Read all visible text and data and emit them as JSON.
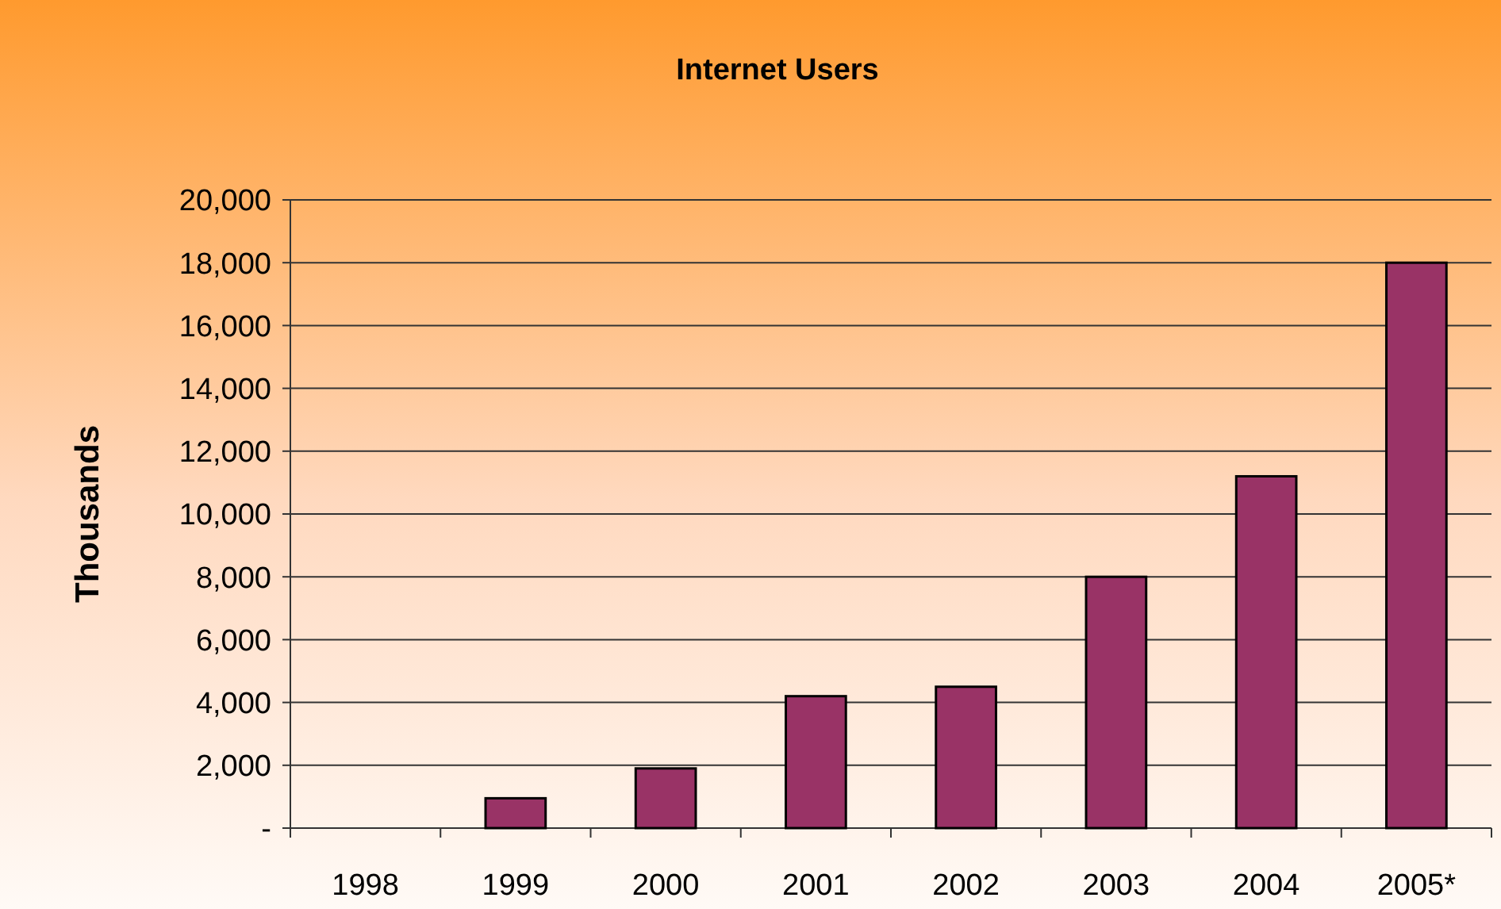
{
  "chart_data": {
    "type": "bar",
    "title": "Internet Users",
    "ylabel": "Thousands",
    "categories": [
      "1998",
      "1999",
      "2000",
      "2001",
      "2002",
      "2003",
      "2004",
      "2005*"
    ],
    "values": [
      0,
      950,
      1900,
      4200,
      4500,
      8000,
      11200,
      18000
    ],
    "color": "#993366",
    "ylim": [
      0,
      20000
    ],
    "yticks": [
      {
        "value": 0,
        "label": "-"
      },
      {
        "value": 2000,
        "label": "2,000"
      },
      {
        "value": 4000,
        "label": "4,000"
      },
      {
        "value": 6000,
        "label": "6,000"
      },
      {
        "value": 8000,
        "label": "8,000"
      },
      {
        "value": 10000,
        "label": "10,000"
      },
      {
        "value": 12000,
        "label": "12,000"
      },
      {
        "value": 14000,
        "label": "14,000"
      },
      {
        "value": 16000,
        "label": "16,000"
      },
      {
        "value": 18000,
        "label": "18,000"
      },
      {
        "value": 20000,
        "label": "20,000"
      }
    ],
    "grid": "y"
  }
}
